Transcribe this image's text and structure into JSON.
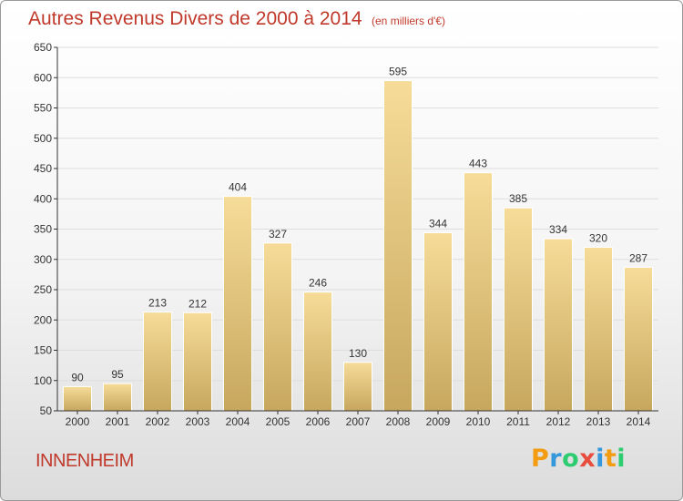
{
  "chart_data": {
    "type": "bar",
    "title": "Autres Revenus Divers de 2000 à 2014",
    "subtitle": "(en milliers d'€)",
    "categories": [
      "2000",
      "2001",
      "2002",
      "2003",
      "2004",
      "2005",
      "2006",
      "2007",
      "2008",
      "2009",
      "2010",
      "2011",
      "2012",
      "2013",
      "2014"
    ],
    "values": [
      90,
      95,
      213,
      212,
      404,
      327,
      246,
      130,
      595,
      344,
      443,
      385,
      334,
      320,
      287
    ],
    "ylim": [
      50,
      650
    ],
    "yticks": [
      50,
      100,
      150,
      200,
      250,
      300,
      350,
      400,
      450,
      500,
      550,
      600,
      650
    ],
    "grid": true,
    "bar_color": "#e8c97a",
    "xlabel": "",
    "ylabel": ""
  },
  "commune": "INNENHEIM",
  "brand": {
    "name": "Proxiti",
    "letters": [
      {
        "ch": "P",
        "color": "#f39c12"
      },
      {
        "ch": "r",
        "color": "#3498db"
      },
      {
        "ch": "o",
        "color": "#2ecc71"
      },
      {
        "ch": "x",
        "color": "#e74c3c"
      },
      {
        "ch": "i",
        "color": "#3498db"
      },
      {
        "ch": "t",
        "color": "#f39c12"
      },
      {
        "ch": "i",
        "color": "#2ecc71"
      }
    ]
  },
  "colors": {
    "title": "#c0392b",
    "grid": "#dddddd",
    "axis": "#333333"
  }
}
